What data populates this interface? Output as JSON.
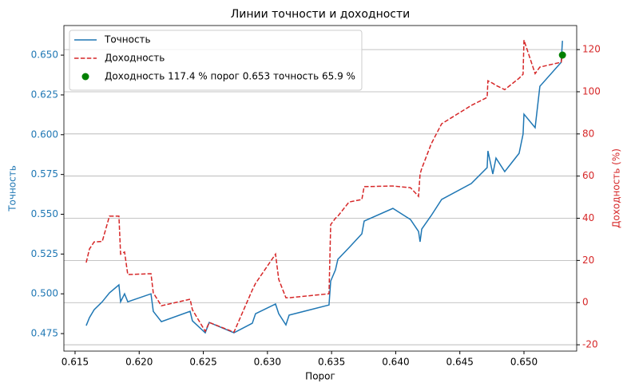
{
  "chart_data": {
    "type": "line",
    "title": "Линии точности и доходности",
    "xlabel": "Порог",
    "ylabel": "Точность",
    "y2label": "Доходность (%)",
    "x": [
      0.61587,
      0.61612,
      0.61649,
      0.61712,
      0.61768,
      0.61842,
      0.61855,
      0.61886,
      0.61911,
      0.62092,
      0.6211,
      0.62173,
      0.62397,
      0.62415,
      0.62515,
      0.62546,
      0.62739,
      0.62882,
      0.62907,
      0.63063,
      0.63088,
      0.63144,
      0.63169,
      0.6348,
      0.63493,
      0.6353,
      0.63549,
      0.63636,
      0.63736,
      0.63754,
      0.63978,
      0.64115,
      0.64178,
      0.6419,
      0.64203,
      0.64277,
      0.64358,
      0.64589,
      0.64713,
      0.64719,
      0.64757,
      0.64782,
      0.6485,
      0.64962,
      0.64993,
      0.65,
      0.65087,
      0.65124,
      0.6529,
      0.653
    ],
    "series": [
      {
        "name": "Точность",
        "color": "#1f77b4",
        "axis": "y",
        "dash": false,
        "values": [
          0.48,
          0.485,
          0.49,
          0.495,
          0.5006,
          0.5056,
          0.495,
          0.5,
          0.495,
          0.5,
          0.489,
          0.4825,
          0.489,
          0.483,
          0.4755,
          0.482,
          0.4755,
          0.4815,
          0.4875,
          0.4936,
          0.4875,
          0.4805,
          0.4866,
          0.493,
          0.508,
          0.515,
          0.5217,
          0.529,
          0.5377,
          0.5457,
          0.5537,
          0.5467,
          0.5392,
          0.5327,
          0.5407,
          0.5492,
          0.5593,
          0.5693,
          0.5793,
          0.5898,
          0.5753,
          0.5853,
          0.5768,
          0.5883,
          0.6004,
          0.6129,
          0.6044,
          0.6304,
          0.6455,
          0.659
        ]
      },
      {
        "name": "Доходность",
        "color": "#d62728",
        "axis": "y2",
        "dash": true,
        "values": [
          19,
          25.4,
          28.8,
          29,
          41,
          41,
          23,
          24,
          13.3,
          13.7,
          4.6,
          -1.5,
          1.6,
          -3.4,
          -13.6,
          -9.4,
          -14,
          6,
          9.1,
          23,
          11,
          2.3,
          2.3,
          4.2,
          37,
          40,
          41,
          47.7,
          48.9,
          55,
          55.3,
          54.5,
          50.4,
          61,
          63.6,
          75.3,
          84.8,
          93.5,
          97.3,
          105.2,
          104,
          103,
          101,
          106.4,
          108.3,
          124.5,
          108.6,
          111.7,
          114,
          117.4
        ]
      }
    ],
    "point": {
      "name": "Доходность 117.4 % порог 0.653 точность 65.9 %",
      "color": "#008000",
      "axis": "y2",
      "x": 0.653,
      "y": 117.4
    },
    "xlim": [
      0.61413,
      0.65411
    ],
    "xticks": [
      0.615,
      {
        "value": 0.62,
        "label": "0.620"
      },
      0.625,
      {
        "value": 0.63,
        "label": "0.630"
      },
      0.635,
      {
        "value": 0.64,
        "label": "0.640"
      },
      0.645,
      {
        "value": 0.65,
        "label": "0.650"
      }
    ],
    "ylim": [
      0.464,
      0.6686
    ],
    "yticks": [
      0.475,
      {
        "value": 0.5,
        "label": "0.500"
      },
      0.525,
      {
        "value": 0.55,
        "label": "0.550"
      },
      0.575,
      {
        "value": 0.6,
        "label": "0.600"
      },
      0.625,
      {
        "value": 0.65,
        "label": "0.650"
      }
    ],
    "y2lim": [
      -23,
      131.4
    ],
    "y2ticks": [
      -20,
      0,
      20,
      40,
      60,
      80,
      100,
      120
    ],
    "grid": "y2",
    "legend": "upper left"
  }
}
